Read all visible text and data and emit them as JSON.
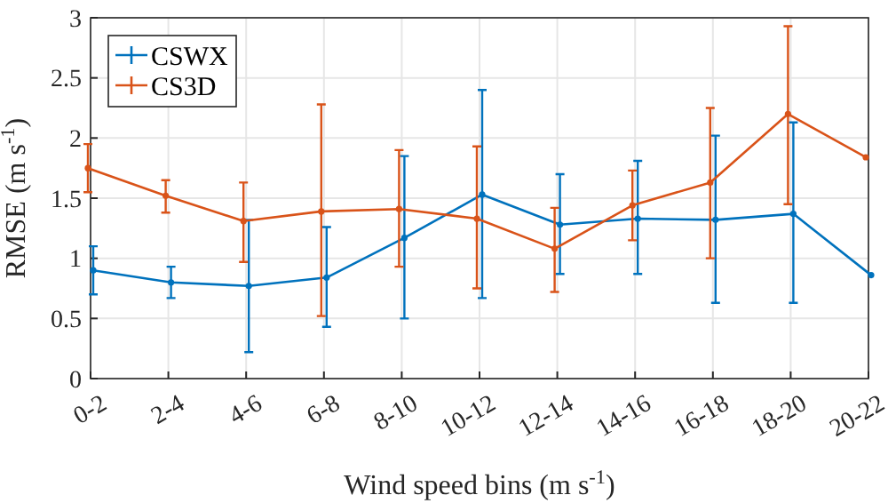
{
  "chart_data": {
    "type": "line",
    "xlabel": "Wind speed bins (m s$^{-1}$)",
    "ylabel": "RMSE (m s$^{-1}$)",
    "categories": [
      "0-2",
      "2-4",
      "4-6",
      "6-8",
      "8-10",
      "10-12",
      "12-14",
      "14-16",
      "16-18",
      "18-20",
      "20-22"
    ],
    "series": [
      {
        "name": "CSWX",
        "color": "#0072bd",
        "values": [
          0.9,
          0.8,
          0.77,
          0.84,
          1.17,
          1.53,
          1.28,
          1.33,
          1.32,
          1.37,
          0.86
        ],
        "errors": [
          [
            0.7,
            1.1
          ],
          [
            0.67,
            0.93
          ],
          [
            0.22,
            1.32
          ],
          [
            0.43,
            1.26
          ],
          [
            0.5,
            1.85
          ],
          [
            0.67,
            2.4
          ],
          [
            0.87,
            1.7
          ],
          [
            0.87,
            1.81
          ],
          [
            0.63,
            2.02
          ],
          [
            0.63,
            2.13
          ],
          null
        ]
      },
      {
        "name": "CS3D",
        "color": "#d95319",
        "values": [
          1.75,
          1.52,
          1.31,
          1.39,
          1.41,
          1.33,
          1.08,
          1.44,
          1.63,
          2.2,
          1.84
        ],
        "errors": [
          [
            1.55,
            1.95
          ],
          [
            1.38,
            1.65
          ],
          [
            0.97,
            1.63
          ],
          [
            0.52,
            2.28
          ],
          [
            0.93,
            1.9
          ],
          [
            0.75,
            1.93
          ],
          [
            0.72,
            1.42
          ],
          [
            1.15,
            1.73
          ],
          [
            1.0,
            2.25
          ],
          [
            1.45,
            2.93
          ],
          null
        ]
      }
    ],
    "ylim": [
      0,
      3
    ],
    "yticks": [
      0,
      0.5,
      1,
      1.5,
      2,
      2.5,
      3
    ],
    "grid": true,
    "legend": "top left",
    "marker": "circle",
    "line_style": "solid"
  }
}
